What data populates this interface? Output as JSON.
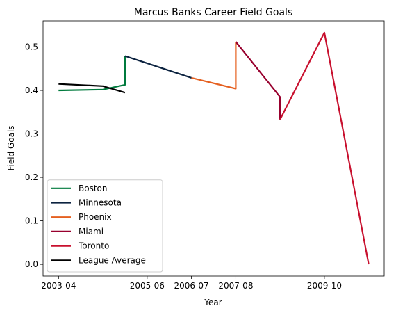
{
  "chart_data": {
    "type": "line",
    "title": "Marcus Banks Career Field Goals",
    "xlabel": "Year",
    "ylabel": "Field Goals",
    "x_ticks": [
      {
        "label": "2003-04",
        "x": 0
      },
      {
        "label": "2005-06",
        "x": 2
      },
      {
        "label": "2006-07",
        "x": 3
      },
      {
        "label": "2007-08",
        "x": 4
      },
      {
        "label": "2009-10",
        "x": 6
      }
    ],
    "y_ticks": [
      0.0,
      0.1,
      0.2,
      0.3,
      0.4,
      0.5
    ],
    "y_tick_labels": [
      "0.0",
      "0.1",
      "0.2",
      "0.3",
      "0.4",
      "0.5"
    ],
    "xlim": [
      -0.35,
      7.35
    ],
    "ylim": [
      -0.027,
      0.56
    ],
    "legend_position": "lower-left",
    "grid": false,
    "series": [
      {
        "name": "Boston",
        "color": "#007a3d",
        "points": [
          [
            0,
            0.4
          ],
          [
            1,
            0.402
          ],
          [
            1.5,
            0.413
          ],
          [
            1.5,
            0.479
          ]
        ]
      },
      {
        "name": "Minnesota",
        "color": "#0c2340",
        "points": [
          [
            1.5,
            0.479
          ],
          [
            3,
            0.429
          ]
        ]
      },
      {
        "name": "Phoenix",
        "color": "#e56020",
        "points": [
          [
            3,
            0.429
          ],
          [
            4,
            0.404
          ],
          [
            4,
            0.512
          ]
        ]
      },
      {
        "name": "Miami",
        "color": "#98002e",
        "points": [
          [
            4,
            0.512
          ],
          [
            5,
            0.385
          ],
          [
            5,
            0.333
          ]
        ]
      },
      {
        "name": "Toronto",
        "color": "#c8102e",
        "points": [
          [
            5,
            0.333
          ],
          [
            6,
            0.533
          ],
          [
            7,
            0.0
          ]
        ]
      },
      {
        "name": "League Average",
        "color": "#000000",
        "points": [
          [
            0,
            0.415
          ],
          [
            1,
            0.41
          ],
          [
            1.5,
            0.395
          ]
        ]
      }
    ]
  }
}
